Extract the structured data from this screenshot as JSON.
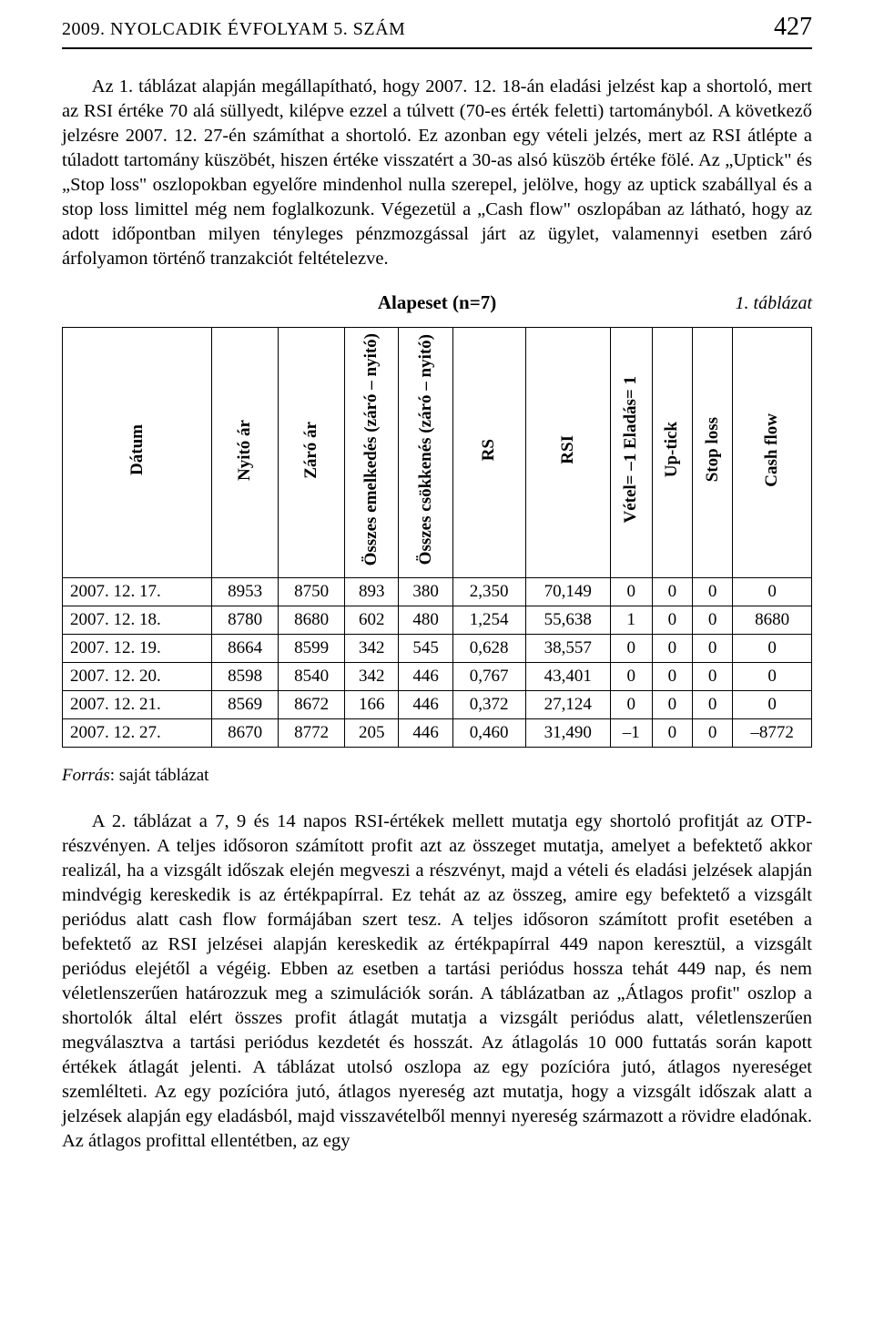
{
  "header": {
    "left": "2009. NYOLCADIK ÉVFOLYAM 5. SZÁM",
    "page_number": "427"
  },
  "paragraph1": "Az 1. táblázat alapján megállapítható, hogy 2007. 12. 18-án eladási jelzést kap a shortoló, mert az RSI értéke 70 alá süllyedt, kilépve ezzel a túlvett (70-es érték feletti) tartományból. A következő jelzésre 2007. 12. 27-én számíthat a shortoló. Ez azonban egy vételi jelzés, mert az RSI átlépte a túladott tartomány küszöbét, hiszen értéke visszatért a 30-as alsó küszöb értéke fölé. Az „Uptick\" és „Stop loss\" oszlopokban egyelőre mindenhol nulla szerepel, jelölve, hogy az uptick szabállyal és a stop loss limittel még nem foglalkozunk. Végezetül a „Cash flow\" oszlopában az látható, hogy az adott időpontban milyen tényleges pénzmozgással járt az ügylet, valamennyi esetben záró árfolyamon történő tranzakciót feltételezve.",
  "table1": {
    "title": "Alapeset (n=7)",
    "caption": "1. táblázat",
    "columns": [
      "Dátum",
      "Nyitó ár",
      "Záró ár",
      "Összes emelkedés (záró – nyitó)",
      "Összes csökkenés (záró – nyitó)",
      "RS",
      "RSI",
      "Vétel= –1 Eladás= 1",
      "Up-tick",
      "Stop loss",
      "Cash flow"
    ],
    "rows": [
      [
        "2007. 12. 17.",
        "8953",
        "8750",
        "893",
        "380",
        "2,350",
        "70,149",
        "0",
        "0",
        "0",
        "0"
      ],
      [
        "2007. 12. 18.",
        "8780",
        "8680",
        "602",
        "480",
        "1,254",
        "55,638",
        "1",
        "0",
        "0",
        "8680"
      ],
      [
        "2007. 12. 19.",
        "8664",
        "8599",
        "342",
        "545",
        "0,628",
        "38,557",
        "0",
        "0",
        "0",
        "0"
      ],
      [
        "2007. 12. 20.",
        "8598",
        "8540",
        "342",
        "446",
        "0,767",
        "43,401",
        "0",
        "0",
        "0",
        "0"
      ],
      [
        "2007. 12. 21.",
        "8569",
        "8672",
        "166",
        "446",
        "0,372",
        "27,124",
        "0",
        "0",
        "0",
        "0"
      ],
      [
        "2007. 12. 27.",
        "8670",
        "8772",
        "205",
        "446",
        "0,460",
        "31,490",
        "–1",
        "0",
        "0",
        "–8772"
      ]
    ]
  },
  "forras_label": "Forrás",
  "forras_text": ": saját táblázat",
  "paragraph2": "A 2. táblázat a 7, 9 és 14 napos RSI-értékek mellett mutatja egy shortoló profitját az OTP-részvényen. A teljes idősoron számított profit azt az összeget mutatja, amelyet a befektető akkor realizál, ha a vizsgált időszak elején megveszi a részvényt, majd a vételi és eladási jelzések alapján mindvégig kereskedik is az értékpapírral. Ez tehát az az összeg, amire egy befektető a vizsgált periódus alatt cash flow formájában szert tesz. A teljes idősoron számított profit esetében a befektető az RSI jelzései alapján kereskedik az értékpapírral 449 napon keresztül, a vizsgált periódus elejétől a végéig. Ebben az esetben a tartási periódus hossza tehát 449 nap, és nem véletlenszerűen határozzuk meg a szimulációk során. A táblázatban az „Átlagos profit\" oszlop a shortolók által elért összes profit átlagát mutatja a vizsgált periódus alatt, véletlenszerűen megválasztva a tartási periódus kezdetét és hosszát. Az átlagolás 10 000 futtatás során kapott értékek átlagát jelenti. A táblázat utolsó oszlopa az egy pozícióra jutó, átlagos nyereséget szemlélteti. Az egy pozícióra jutó, átlagos nyereség azt mutatja, hogy a vizsgált időszak alatt a jelzések alapján egy eladásból, majd visszavételből mennyi nyereség származott a rövidre eladónak. Az átlagos profittal ellentétben, az egy"
}
